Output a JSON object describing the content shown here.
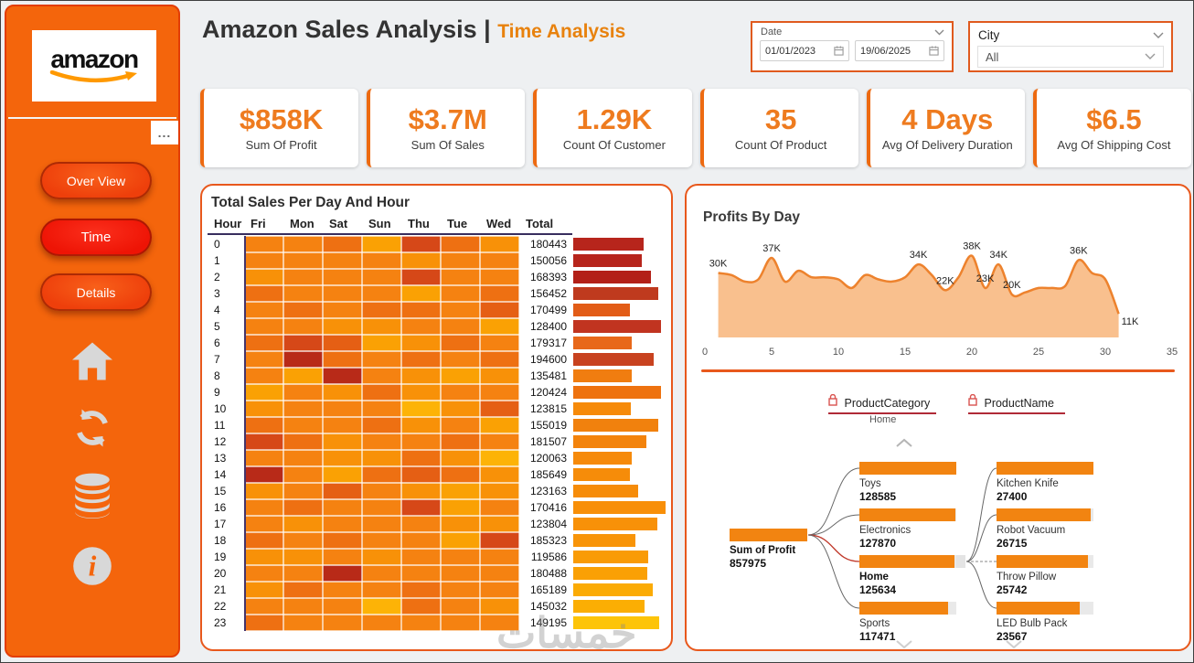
{
  "colors": {
    "accent_orange": "#f4650c",
    "nav_red": "#ee1405",
    "panel_border": "#e8581c",
    "kpi_value": "#ee7b1f",
    "title_sub_orange": "#e8820e",
    "header_rule_navy": "#382e5e",
    "area_fill": "#f9c08e",
    "area_stroke": "#ed822d",
    "tree_bar": "#f28411",
    "lock_red": "#d9534f",
    "selected_link_red": "#c0392b"
  },
  "sidebar": {
    "logo_text": "amazon",
    "more_label": "...",
    "nav": [
      {
        "label": "Over View",
        "active": false
      },
      {
        "label": "Time",
        "active": true
      },
      {
        "label": "Details",
        "active": false
      }
    ],
    "icon_names": [
      "home-icon",
      "refresh-icon",
      "database-icon",
      "info-icon"
    ]
  },
  "header": {
    "title_main": "Amazon Sales Analysis |",
    "title_sub": "Time Analysis"
  },
  "filters": {
    "date": {
      "label": "Date",
      "from": "01/01/2023",
      "to": "19/06/2025"
    },
    "city": {
      "label": "City",
      "value": "All"
    }
  },
  "kpis": [
    {
      "value": "$858K",
      "label": "Sum Of Profit"
    },
    {
      "value": "$3.7M",
      "label": "Sum Of Sales"
    },
    {
      "value": "1.29K",
      "label": "Count Of Customer"
    },
    {
      "value": "35",
      "label": "Count Of Product"
    },
    {
      "value": "4 Days",
      "label": "Avg Of Delivery Duration"
    },
    {
      "value": "$6.5",
      "label": "Avg Of Shipping Cost"
    }
  ],
  "chart_data": [
    {
      "type": "heatmap",
      "title": "Total Sales Per Day And Hour",
      "columns": [
        "Hour",
        "Fri",
        "Mon",
        "Sat",
        "Sun",
        "Thu",
        "Tue",
        "Wed",
        "Total"
      ],
      "hours": [
        0,
        1,
        2,
        3,
        4,
        5,
        6,
        7,
        8,
        9,
        10,
        11,
        12,
        13,
        14,
        15,
        16,
        17,
        18,
        19,
        20,
        21,
        22,
        23
      ],
      "totals": [
        180443,
        150056,
        168393,
        156452,
        170499,
        128400,
        179317,
        194600,
        135481,
        120424,
        123815,
        155019,
        181507,
        120063,
        185649,
        123163,
        170416,
        123804,
        185323,
        119586,
        180488,
        165189,
        145032,
        149195
      ],
      "palette": {
        "1": "#ffc40d",
        "2": "#fdb306",
        "3": "#faa104",
        "4": "#f89108",
        "5": "#f58211",
        "6": "#ee7012",
        "7": "#e55f14",
        "8": "#d64818",
        "9": "#b82a18"
      },
      "grid": [
        [
          5,
          5,
          6,
          3,
          8,
          6,
          4
        ],
        [
          5,
          5,
          5,
          5,
          4,
          5,
          5
        ],
        [
          4,
          5,
          5,
          5,
          8,
          5,
          5
        ],
        [
          6,
          5,
          5,
          5,
          3,
          5,
          6
        ],
        [
          5,
          6,
          5,
          6,
          6,
          5,
          7
        ],
        [
          5,
          5,
          4,
          4,
          5,
          5,
          3
        ],
        [
          6,
          8,
          7,
          3,
          4,
          6,
          5
        ],
        [
          5,
          9,
          6,
          5,
          6,
          5,
          6
        ],
        [
          5,
          3,
          9,
          5,
          4,
          3,
          4
        ],
        [
          3,
          5,
          4,
          6,
          4,
          5,
          5
        ],
        [
          4,
          5,
          5,
          5,
          2,
          4,
          7
        ],
        [
          6,
          5,
          5,
          6,
          4,
          5,
          3
        ],
        [
          8,
          6,
          4,
          5,
          5,
          6,
          5
        ],
        [
          5,
          5,
          4,
          4,
          6,
          4,
          2
        ],
        [
          9,
          5,
          3,
          6,
          7,
          6,
          4
        ],
        [
          4,
          5,
          7,
          5,
          4,
          3,
          4
        ],
        [
          5,
          6,
          5,
          5,
          8,
          3,
          5
        ],
        [
          5,
          4,
          5,
          5,
          5,
          4,
          4
        ],
        [
          6,
          5,
          6,
          5,
          5,
          3,
          8
        ],
        [
          4,
          4,
          5,
          4,
          5,
          5,
          5
        ],
        [
          5,
          5,
          9,
          5,
          5,
          5,
          5
        ],
        [
          4,
          6,
          5,
          5,
          6,
          5,
          5
        ],
        [
          5,
          5,
          5,
          2,
          6,
          5,
          4
        ],
        [
          6,
          5,
          5,
          5,
          5,
          5,
          5
        ]
      ],
      "total_bars": {
        "pct": [
          76,
          74,
          84,
          92,
          61,
          95,
          63,
          87,
          63,
          95,
          62,
          92,
          79,
          63,
          61,
          70,
          100,
          91,
          67,
          81,
          80,
          86,
          77,
          93
        ],
        "colors": [
          "#b7251c",
          "#b7251c",
          "#b32018",
          "#bf3a1e",
          "#e25c17",
          "#c13420",
          "#e8681a",
          "#c8421f",
          "#f07d10",
          "#ee720f",
          "#f68a0a",
          "#f1810d",
          "#f3830c",
          "#f68a0a",
          "#f68c09",
          "#f68c09",
          "#f88f08",
          "#f89108",
          "#f89408",
          "#f99b06",
          "#faa005",
          "#fbab04",
          "#fbae03",
          "#fdc408"
        ]
      }
    },
    {
      "type": "area",
      "title": "Profits By Day",
      "xlim": [
        0,
        35
      ],
      "x_ticks": [
        0,
        5,
        10,
        15,
        20,
        25,
        30,
        35
      ],
      "unit": "K",
      "x": [
        1,
        2,
        3,
        4,
        5,
        6,
        7,
        8,
        9,
        10,
        11,
        12,
        13,
        14,
        15,
        16,
        17,
        18,
        19,
        20,
        21,
        22,
        23,
        24,
        25,
        26,
        27,
        28,
        29,
        30,
        31
      ],
      "values": [
        30,
        29,
        26,
        27,
        37,
        26,
        31,
        28,
        28,
        27,
        23,
        29,
        27,
        26,
        28,
        34,
        29,
        22,
        28,
        38,
        23,
        34,
        20,
        21,
        23,
        23,
        24,
        36,
        30,
        27,
        11
      ],
      "point_labels": [
        {
          "x": 1,
          "label": "30K"
        },
        {
          "x": 5,
          "label": "37K"
        },
        {
          "x": 16,
          "label": "34K"
        },
        {
          "x": 18,
          "label": "22K"
        },
        {
          "x": 20,
          "label": "38K"
        },
        {
          "x": 21,
          "label": "23K"
        },
        {
          "x": 22,
          "label": "34K"
        },
        {
          "x": 23,
          "label": "20K"
        },
        {
          "x": 28,
          "label": "36K"
        },
        {
          "x": 31,
          "label": "11K"
        }
      ]
    },
    {
      "type": "tree",
      "root": {
        "label": "Sum of Profit",
        "value": "857975"
      },
      "levels": [
        {
          "field": "ProductCategory",
          "locked": true,
          "selected": "Home"
        },
        {
          "field": "ProductName",
          "locked": true
        }
      ],
      "categories": [
        {
          "name": "Toys",
          "value": 128585,
          "selected": false
        },
        {
          "name": "Electronics",
          "value": 127870,
          "selected": false
        },
        {
          "name": "Home",
          "value": 125634,
          "selected": true
        },
        {
          "name": "Sports",
          "value": 117471,
          "selected": false
        }
      ],
      "products": [
        {
          "name": "Kitchen Knife",
          "value": 27400
        },
        {
          "name": "Robot Vacuum",
          "value": 26715
        },
        {
          "name": "Throw Pillow",
          "value": 25742
        },
        {
          "name": "LED Bulb Pack",
          "value": 23567
        }
      ]
    }
  ],
  "watermark": "خمسات"
}
